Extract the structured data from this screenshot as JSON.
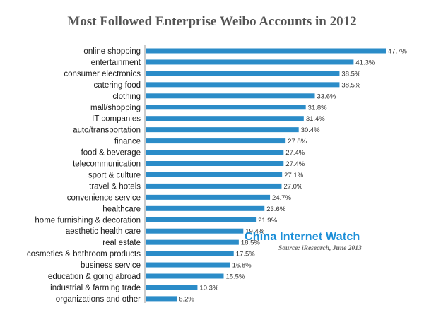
{
  "title": "Most Followed Enterprise Weibo Accounts in 2012",
  "watermark": {
    "brand": "China Internet Watch",
    "source": "Source: iResearch, June 2013"
  },
  "colors": {
    "bar": "#2b8cc8",
    "brand": "#1c8fd8"
  },
  "chart_data": {
    "type": "bar",
    "orientation": "horizontal",
    "title": "Most Followed Enterprise Weibo Accounts in 2012",
    "categories": [
      "online shopping",
      "entertainment",
      "consumer electronics",
      "catering food",
      "clothing",
      "mall/shopping",
      "IT companies",
      "auto/transportation",
      "finance",
      "food & beverage",
      "telecommunication",
      "sport & culture",
      "travel & hotels",
      "convenience service",
      "healthcare",
      "home furnishing & decoration",
      "aesthetic health care",
      "real estate",
      "cosmetics & bathroom products",
      "business service",
      "education & going abroad",
      "industrial & farming trade",
      "organizations and other"
    ],
    "values": [
      47.7,
      41.3,
      38.5,
      38.5,
      33.6,
      31.8,
      31.4,
      30.4,
      27.8,
      27.4,
      27.4,
      27.1,
      27.0,
      24.7,
      23.6,
      21.9,
      19.4,
      18.5,
      17.5,
      16.8,
      15.5,
      10.3,
      6.2
    ],
    "value_labels": [
      "47.7%",
      "41.3%",
      "38.5%",
      "38.5%",
      "33.6%",
      "31.8%",
      "31.4%",
      "30.4%",
      "27.8%",
      "27.4%",
      "27.4%",
      "27.1%",
      "27.0%",
      "24.7%",
      "23.6%",
      "21.9%",
      "19.4%",
      "18.5%",
      "17.5%",
      "16.8%",
      "15.5%",
      "10.3%",
      "6.2%"
    ],
    "xlim": [
      0,
      50
    ],
    "grid": false,
    "legend": "none"
  }
}
